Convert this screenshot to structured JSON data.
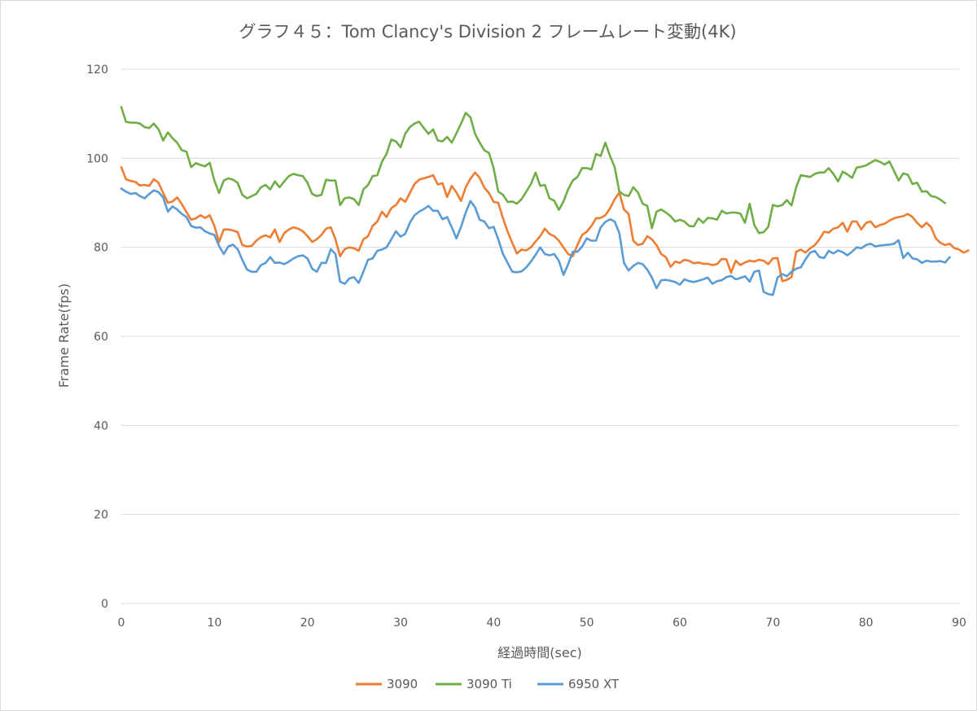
{
  "chart_data": {
    "type": "line",
    "title": "グラフ４５：Tom Clancy's Division 2 フレームレート変動(4K)",
    "xlabel": "経過時間(sec)",
    "ylabel": "Frame Rate(fps)",
    "xlim": [
      0,
      90
    ],
    "ylim": [
      0,
      120
    ],
    "x_ticks": [
      "0",
      "10",
      "20",
      "30",
      "40",
      "50",
      "60",
      "70",
      "80",
      "90"
    ],
    "y_ticks": [
      "0",
      "20",
      "40",
      "60",
      "80",
      "100",
      "120"
    ],
    "grid": "horizontal",
    "legend_position": "bottom-center",
    "x_start": 0,
    "x_step": 0.5,
    "series": [
      {
        "name": "3090",
        "color": "#ED7D31",
        "values": [
          98,
          95.3,
          94.9,
          94.7,
          93.9,
          94,
          93.8,
          95.3,
          94.5,
          92.2,
          90,
          90.3,
          91.2,
          89.7,
          87.9,
          86.2,
          86.5,
          87.2,
          86.6,
          87.2,
          84.8,
          81.2,
          84,
          84,
          83.8,
          83.4,
          80.5,
          80.2,
          80.3,
          81.5,
          82.3,
          82.7,
          82.2,
          84,
          81.2,
          83.2,
          84,
          84.5,
          84.2,
          83.6,
          82.5,
          81.2,
          81.8,
          82.8,
          84.2,
          84.5,
          81.8,
          78,
          79.6,
          80,
          79.8,
          79.2,
          81.8,
          82.5,
          84.8,
          85.8,
          88,
          86.8,
          88.8,
          89.5,
          91,
          90.2,
          92.2,
          94.2,
          95.2,
          95.5,
          95.8,
          96.2,
          94.1,
          94.4,
          91.3,
          93.8,
          92.3,
          90.4,
          93.5,
          95.4,
          96.8,
          95.6,
          93.4,
          92.2,
          90.2,
          90,
          86.5,
          83.5,
          81,
          78.6,
          79.5,
          79.3,
          80,
          81.3,
          82.5,
          84.2,
          83,
          82.5,
          81.5,
          80,
          78.5,
          78,
          80.5,
          82.8,
          83.5,
          84.8,
          86.5,
          86.6,
          87.2,
          88.8,
          90.8,
          92.3,
          88.5,
          87.5,
          81.5,
          80.5,
          80.8,
          82.5,
          81.8,
          80.5,
          78.5,
          77.8,
          75.6,
          76.8,
          76.5,
          77.2,
          77,
          76.4,
          76.6,
          76.3,
          76.3,
          76,
          76.2,
          77.4,
          77.3,
          74.3,
          77,
          76,
          76.6,
          77,
          76.8,
          77.2,
          77,
          76.2,
          77.5,
          77.6,
          72.4,
          72.7,
          73.3,
          79,
          79.5,
          78.8,
          79.8,
          80.5,
          81.8,
          83.5,
          83.3,
          84.2,
          84.5,
          85.5,
          83.5,
          85.8,
          85.8,
          84,
          85.5,
          85.8,
          84.5,
          85,
          85.3,
          86,
          86.5,
          86.8,
          87,
          87.5,
          86.8,
          85.5,
          84.5,
          85.5,
          84.5,
          82,
          81,
          80.5,
          80.8,
          79.8,
          79.5,
          78.8,
          79.3
        ]
      },
      {
        "name": "3090 Ti",
        "color": "#70AD47",
        "values": [
          111.5,
          108.2,
          108,
          108,
          107.8,
          107,
          106.8,
          107.8,
          106.5,
          104,
          105.8,
          104.5,
          103.5,
          101.8,
          101.5,
          98,
          98.9,
          98.5,
          98.2,
          99,
          95,
          92.2,
          95,
          95.5,
          95.2,
          94.5,
          91.8,
          91,
          91.5,
          92,
          93.5,
          94,
          93,
          94.8,
          93.5,
          94.8,
          96,
          96.5,
          96.2,
          96,
          94.5,
          92,
          91.5,
          91.8,
          95.2,
          95,
          95,
          89.5,
          91,
          91.2,
          90.8,
          89.5,
          93,
          94,
          96,
          96.2,
          99.2,
          101,
          104.2,
          103.8,
          102.5,
          105.5,
          107,
          107.8,
          108.2,
          106.8,
          105.5,
          106.5,
          104,
          103.8,
          104.8,
          103.5,
          105.6,
          107.8,
          110.2,
          109.2,
          105.5,
          103.5,
          101.8,
          101.2,
          97.8,
          92.5,
          91.8,
          90.2,
          90.3,
          89.8,
          90.8,
          92.5,
          94.2,
          96.8,
          93.8,
          94,
          91,
          90.5,
          88.4,
          90.3,
          93,
          95,
          95.8,
          97.8,
          97.8,
          97.5,
          101,
          100.5,
          103.5,
          100.5,
          98,
          92.5,
          91.8,
          91.5,
          93.5,
          92.3,
          89.8,
          89.3,
          84.3,
          88,
          88.5,
          87.8,
          87,
          85.8,
          86.2,
          85.8,
          84.8,
          84.7,
          86.5,
          85.5,
          86.6,
          86.5,
          86.2,
          88.2,
          87.6,
          87.8,
          87.8,
          87.6,
          85.5,
          89.8,
          85,
          83.2,
          83.4,
          84.6,
          89.5,
          89.2,
          89.5,
          90.6,
          89.4,
          93.5,
          96.2,
          96,
          95.8,
          96.5,
          96.8,
          96.8,
          97.8,
          96.5,
          94.8,
          97,
          96.4,
          95.6,
          97.9,
          98.1,
          98.4,
          99,
          99.6,
          99.2,
          98.6,
          99.3,
          97.2,
          95,
          96.6,
          96.3,
          94.2,
          94.5,
          92.5,
          92.6,
          91.5,
          91.3,
          90.7,
          89.9
        ]
      },
      {
        "name": "6950 XT",
        "color": "#5B9BD5",
        "values": [
          93.2,
          92.5,
          92,
          92.2,
          91.5,
          91,
          92,
          92.8,
          92.4,
          91.2,
          88,
          89.2,
          88.5,
          87.5,
          86.8,
          84.8,
          84.4,
          84.5,
          83.6,
          83.1,
          82.8,
          80.3,
          78.5,
          80.2,
          80.6,
          79.6,
          77.2,
          75,
          74.5,
          74.5,
          76,
          76.5,
          77.8,
          76.5,
          76.6,
          76.2,
          76.8,
          77.5,
          78,
          78.2,
          77.5,
          75.2,
          74.5,
          76.5,
          76.5,
          79.6,
          78.5,
          72.3,
          71.8,
          73,
          73.3,
          72,
          74.5,
          77.2,
          77.5,
          79.2,
          79.5,
          80,
          81.8,
          83.6,
          82.4,
          83,
          85.5,
          87.2,
          88,
          88.6,
          89.3,
          88.2,
          88.2,
          86.3,
          86.8,
          84.5,
          82,
          84.6,
          87.8,
          90.4,
          89,
          86.2,
          85.8,
          84.3,
          84.6,
          81.8,
          78.5,
          76.5,
          74.5,
          74.4,
          74.6,
          75.5,
          76.8,
          78.3,
          80,
          78.5,
          78.2,
          78.5,
          77,
          73.8,
          76.2,
          79,
          79,
          80.2,
          82,
          81.5,
          81.5,
          84.5,
          85.7,
          86.3,
          85.8,
          83.2,
          76.5,
          74.8,
          75.8,
          76.5,
          76.2,
          75,
          73.2,
          70.8,
          72.6,
          72.7,
          72.5,
          72.2,
          71.6,
          72.8,
          72.4,
          72.2,
          72.5,
          72.8,
          73.2,
          71.8,
          72.4,
          72.6,
          73.3,
          73.6,
          72.8,
          73.1,
          73.5,
          72.3,
          74.5,
          74.8,
          70,
          69.5,
          69.3,
          73.2,
          74,
          73.5,
          74.5,
          75.2,
          75.5,
          77.3,
          78.8,
          79.2,
          77.8,
          77.6,
          79.2,
          78.6,
          79.3,
          78.9,
          78.2,
          79,
          80,
          79.8,
          80.5,
          80.8,
          80.2,
          80.4,
          80.5,
          80.6,
          80.8,
          81.6,
          77.6,
          78.8,
          77.5,
          77.3,
          76.5,
          77,
          76.8,
          76.8,
          76.9,
          76.6,
          77.8
        ]
      }
    ]
  }
}
